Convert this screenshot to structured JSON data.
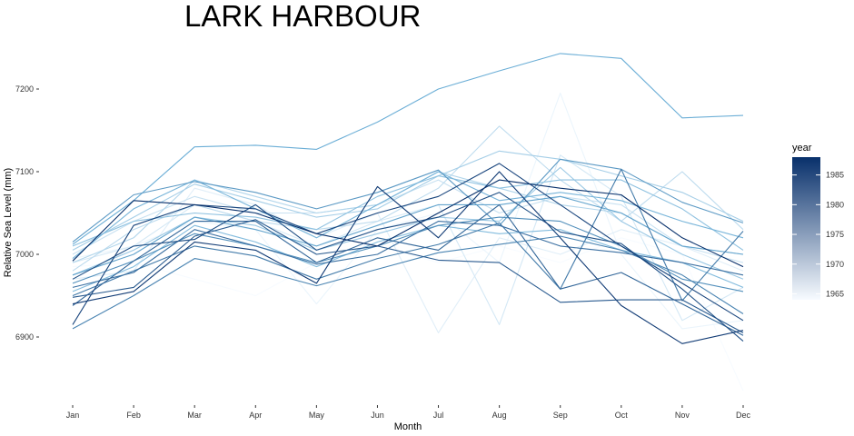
{
  "chart_data": {
    "type": "line",
    "title": "LARK HARBOUR",
    "xlabel": "Month",
    "ylabel": "Relative Sea Level (mm)",
    "categories": [
      "Jan",
      "Feb",
      "Mar",
      "Apr",
      "May",
      "Jun",
      "Jul",
      "Aug",
      "Sep",
      "Oct",
      "Nov",
      "Dec"
    ],
    "ylim": [
      6830,
      7255
    ],
    "yticks": [
      6900,
      7000,
      7100,
      7200
    ],
    "grid": false,
    "legend": {
      "title": "year",
      "position": "right",
      "type": "colorbar",
      "range": [
        1964,
        1988
      ],
      "ticks": [
        1965,
        1970,
        1975,
        1980,
        1985
      ],
      "color_low": "#f7fbff",
      "color_high": "#08306b"
    },
    "series": [
      {
        "year": 1964,
        "values": [
          6985,
          6990,
          6970,
          6950,
          6990,
          7010,
          6990,
          7010,
          6990,
          7020,
          7000,
          6835
        ]
      },
      {
        "year": 1965,
        "values": [
          6995,
          7010,
          7040,
          7030,
          6940,
          7030,
          7050,
          6990,
          7195,
          7000,
          6910,
          6920
        ]
      },
      {
        "year": 1966,
        "values": [
          6970,
          6980,
          7080,
          7060,
          7020,
          7050,
          6905,
          7020,
          7000,
          7030,
          7010,
          6980
        ]
      },
      {
        "year": 1967,
        "values": [
          6990,
          7010,
          7060,
          7040,
          7010,
          7040,
          7060,
          6915,
          7120,
          7070,
          6920,
          6960
        ]
      },
      {
        "year": 1968,
        "values": [
          7000,
          7040,
          7070,
          7050,
          7050,
          7060,
          7090,
          7050,
          7070,
          7060,
          7010,
          6990
        ]
      },
      {
        "year": 1969,
        "values": [
          6980,
          7030,
          7060,
          7040,
          7030,
          7040,
          7080,
          7155,
          7090,
          7040,
          7100,
          7030
        ]
      },
      {
        "year": 1970,
        "values": [
          6990,
          7020,
          7090,
          7070,
          7050,
          7060,
          7100,
          7080,
          7060,
          7050,
          7010,
          7000
        ]
      },
      {
        "year": 1971,
        "values": [
          7005,
          7045,
          7085,
          7065,
          7045,
          7055,
          7095,
          7125,
          7115,
          7095,
          7075,
          7040
        ]
      },
      {
        "year": 1972,
        "values": [
          6975,
          7005,
          7045,
          7035,
          7005,
          7025,
          7045,
          7040,
          7105,
          7040,
          7000,
          6970
        ]
      },
      {
        "year": 1973,
        "values": [
          7010,
          7040,
          7050,
          7045,
          7030,
          7070,
          7095,
          7080,
          7090,
          7090,
          7055,
          7005
        ]
      },
      {
        "year": 1974,
        "values": [
          6955,
          6985,
          7035,
          7015,
          6985,
          7015,
          7035,
          7025,
          7030,
          7005,
          6990,
          6960
        ]
      },
      {
        "year": 1975,
        "values": [
          6995,
          7055,
          7090,
          7055,
          7020,
          7060,
          7100,
          7065,
          7075,
          7065,
          7040,
          7020
        ]
      },
      {
        "year": 1976,
        "values": [
          7012,
          7065,
          7130,
          7132,
          7127,
          7160,
          7200,
          7222,
          7243,
          7237,
          7165,
          7168
        ]
      },
      {
        "year": 1977,
        "values": [
          6975,
          7000,
          7045,
          7030,
          7010,
          7035,
          7060,
          7060,
          7070,
          7050,
          7010,
          7000
        ]
      },
      {
        "year": 1978,
        "values": [
          7015,
          7072,
          7088,
          7075,
          7055,
          7075,
          7102,
          7035,
          7115,
          7103,
          7063,
          7038
        ]
      },
      {
        "year": 1979,
        "values": [
          6965,
          6992,
          7025,
          7010,
          6990,
          7010,
          7035,
          7045,
          7040,
          7010,
          6970,
          6955
        ]
      },
      {
        "year": 1980,
        "values": [
          6910,
          6950,
          6995,
          6982,
          6962,
          6982,
          7002,
          7012,
          7022,
          7005,
          6975,
          6928
        ]
      },
      {
        "year": 1981,
        "values": [
          6950,
          6980,
          7010,
          6998,
          6970,
          6995,
          7012,
          7038,
          6958,
          7103,
          6944,
          7028
        ]
      },
      {
        "year": 1982,
        "values": [
          6960,
          6978,
          7030,
          7010,
          6988,
          7000,
          7040,
          7035,
          7010,
          7002,
          6990,
          6975
        ]
      },
      {
        "year": 1983,
        "values": [
          6938,
          6992,
          7040,
          7040,
          6990,
          7020,
          7005,
          7060,
          6958,
          6978,
          6940,
          6902
        ]
      },
      {
        "year": 1984,
        "values": [
          6948,
          6960,
          7022,
          7042,
          7000,
          7010,
          6993,
          6990,
          6942,
          6945,
          6945,
          6905
        ]
      },
      {
        "year": 1985,
        "values": [
          6970,
          7010,
          7018,
          7060,
          7005,
          7030,
          7045,
          7075,
          7027,
          7013,
          6958,
          6895
        ]
      },
      {
        "year": 1986,
        "values": [
          6915,
          7035,
          7060,
          7055,
          7025,
          7050,
          7070,
          7110,
          7060,
          7010,
          6965,
          6920
        ]
      },
      {
        "year": 1987,
        "values": [
          6940,
          6955,
          7015,
          7005,
          6965,
          7082,
          7020,
          7100,
          7020,
          6938,
          6892,
          6908
        ]
      },
      {
        "year": 1988,
        "values": [
          6992,
          7065,
          7060,
          7050,
          7025,
          7010,
          7050,
          7090,
          7080,
          7072,
          7020,
          6985
        ]
      }
    ]
  }
}
